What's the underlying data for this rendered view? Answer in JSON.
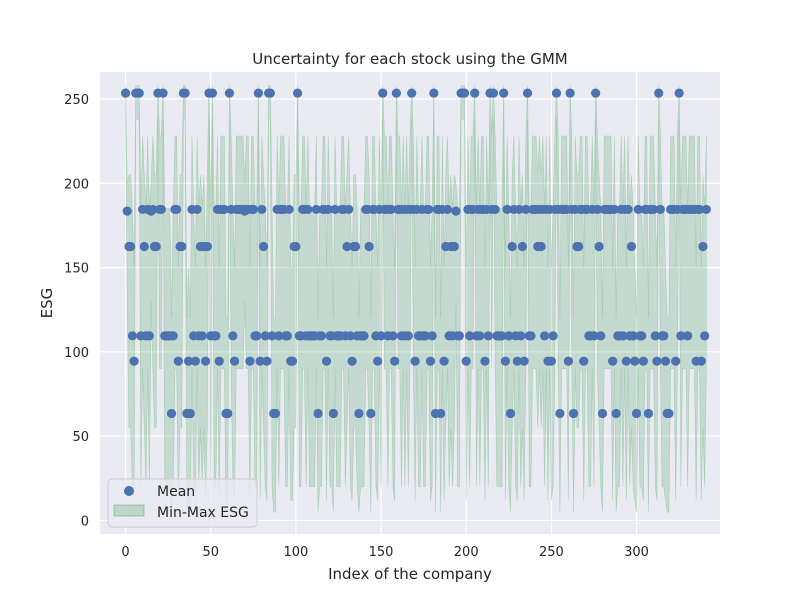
{
  "chart_data": {
    "type": "scatter",
    "title": "Uncertainty for each stock using the GMM",
    "xlabel": "Index of the company",
    "ylabel": "ESG",
    "xlim": [
      -15,
      349
    ],
    "ylim": [
      -8,
      266
    ],
    "xticks": [
      0,
      50,
      100,
      150,
      200,
      250,
      300
    ],
    "yticks": [
      0,
      50,
      100,
      150,
      200,
      250
    ],
    "grid": true,
    "legend_position": "lower-left",
    "legend": [
      {
        "label": "Mean",
        "kind": "marker",
        "color": "#4c72b0"
      },
      {
        "label": "Min-Max ESG",
        "kind": "band",
        "color": "#55a868"
      }
    ],
    "colors": {
      "background": "#eaeaf2",
      "grid": "#ffffff",
      "mean": "#4c72b0",
      "band_fill": "#55a868",
      "band_alpha": 0.25
    },
    "levels": [
      {
        "mean": 253.5,
        "min": 238,
        "max": 258
      },
      {
        "mean": 184.5,
        "min": 90,
        "max": 228
      },
      {
        "mean": 183.5,
        "min": 130,
        "max": 200
      },
      {
        "mean": 162.5,
        "min": 55,
        "max": 205
      },
      {
        "mean": 109.5,
        "min": 20,
        "max": 185
      },
      {
        "mean": 94.5,
        "min": 12,
        "max": 150
      },
      {
        "mean": 63.5,
        "min": 5,
        "max": 120
      }
    ],
    "mean_sequence": [
      0,
      2,
      3,
      3,
      4,
      5,
      0,
      0,
      0,
      4,
      1,
      3,
      4,
      1,
      4,
      2,
      1,
      3,
      3,
      0,
      1,
      1,
      0,
      4,
      4,
      4,
      4,
      6,
      4,
      1,
      1,
      5,
      3,
      3,
      0,
      0,
      6,
      5,
      6,
      1,
      4,
      5,
      1,
      4,
      3,
      4,
      3,
      5,
      3,
      0,
      4,
      0,
      4,
      4,
      1,
      5,
      1,
      1,
      1,
      6,
      6,
      0,
      1,
      4,
      5,
      1,
      1,
      1,
      1,
      1,
      2,
      1,
      1,
      5,
      1,
      1,
      4,
      4,
      0,
      5,
      1,
      3,
      4,
      5,
      0,
      0,
      4,
      6,
      6,
      1,
      4,
      1,
      1,
      1,
      4,
      4,
      1,
      5,
      5,
      3,
      3,
      0,
      4,
      4,
      1,
      1,
      4,
      1,
      4,
      4,
      4,
      4,
      1,
      6,
      4,
      4,
      1,
      1,
      5,
      1,
      4,
      4,
      6,
      1,
      4,
      4,
      4,
      1,
      1,
      4,
      3,
      1,
      4,
      5,
      3,
      3,
      4,
      6,
      4,
      4,
      4,
      1,
      1,
      3,
      6,
      1,
      1,
      4,
      5,
      1,
      4,
      0,
      1,
      1,
      4,
      1,
      1,
      4,
      5,
      0,
      1,
      1,
      4,
      1,
      4,
      1,
      4,
      1,
      0,
      1,
      5,
      1,
      4,
      4,
      1,
      4,
      4,
      1,
      1,
      5,
      4,
      0,
      6,
      1,
      1,
      6,
      1,
      5,
      3,
      1,
      4,
      3,
      4,
      3,
      2,
      4,
      4,
      0,
      0,
      0,
      5,
      1,
      4,
      1,
      1,
      0,
      4,
      1,
      4,
      1,
      1,
      5,
      1,
      4,
      0,
      1,
      0,
      1,
      4,
      4,
      4,
      4,
      0,
      5,
      1,
      4,
      6,
      3,
      1,
      4,
      5,
      1,
      4,
      3,
      5,
      1,
      0,
      4,
      4,
      1,
      1,
      1,
      3,
      1,
      3,
      1,
      4,
      1,
      5,
      1,
      5,
      4,
      1,
      0,
      1,
      6,
      1,
      1,
      1,
      1,
      5,
      0,
      1,
      6,
      1,
      3,
      3,
      1,
      1,
      5,
      1,
      1,
      4,
      4,
      1,
      4,
      0,
      1,
      3,
      4,
      6,
      1,
      1,
      1,
      1,
      1,
      5,
      1,
      6,
      4,
      4,
      1,
      4,
      1,
      5,
      1,
      4,
      3,
      4,
      5,
      6,
      1,
      4,
      4,
      5,
      1,
      1,
      6,
      1,
      1,
      1,
      4,
      5,
      0,
      1,
      4,
      4,
      5,
      6,
      6,
      1,
      1,
      1,
      5,
      1,
      0,
      4,
      1,
      1,
      1,
      4,
      1,
      1,
      1,
      1,
      5,
      1,
      1,
      5,
      3,
      4,
      1
    ]
  }
}
